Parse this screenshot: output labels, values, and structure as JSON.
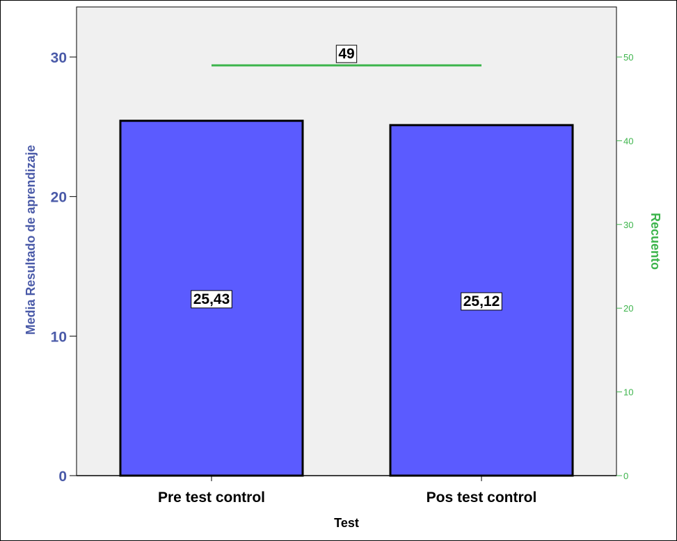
{
  "chart_data": {
    "type": "bar",
    "categories": [
      "Pre test control",
      "Pos test control"
    ],
    "series": [
      {
        "values": [
          25.43,
          25.12
        ],
        "value_labels": [
          "25,43",
          "25,12"
        ],
        "axis": "left",
        "color": "#5b5bff"
      },
      {
        "type": "line",
        "values": [
          49,
          49
        ],
        "value_label": "49",
        "axis": "right",
        "color": "#3cb44b"
      }
    ],
    "xlabel": "Test",
    "ylabel": "Media Resultado de aprendizaje",
    "y2label": "Recuento",
    "ylim": [
      0,
      30
    ],
    "y_ticks": [
      0,
      10,
      20,
      30
    ],
    "y2lim": [
      0,
      50
    ],
    "y2_ticks": [
      0,
      10,
      20,
      30,
      40,
      50
    ],
    "plot_background": "#f0f0f0",
    "left_axis_color": "#4a5aa8",
    "right_axis_color": "#3cb44b",
    "grid": false,
    "legend": "none"
  }
}
